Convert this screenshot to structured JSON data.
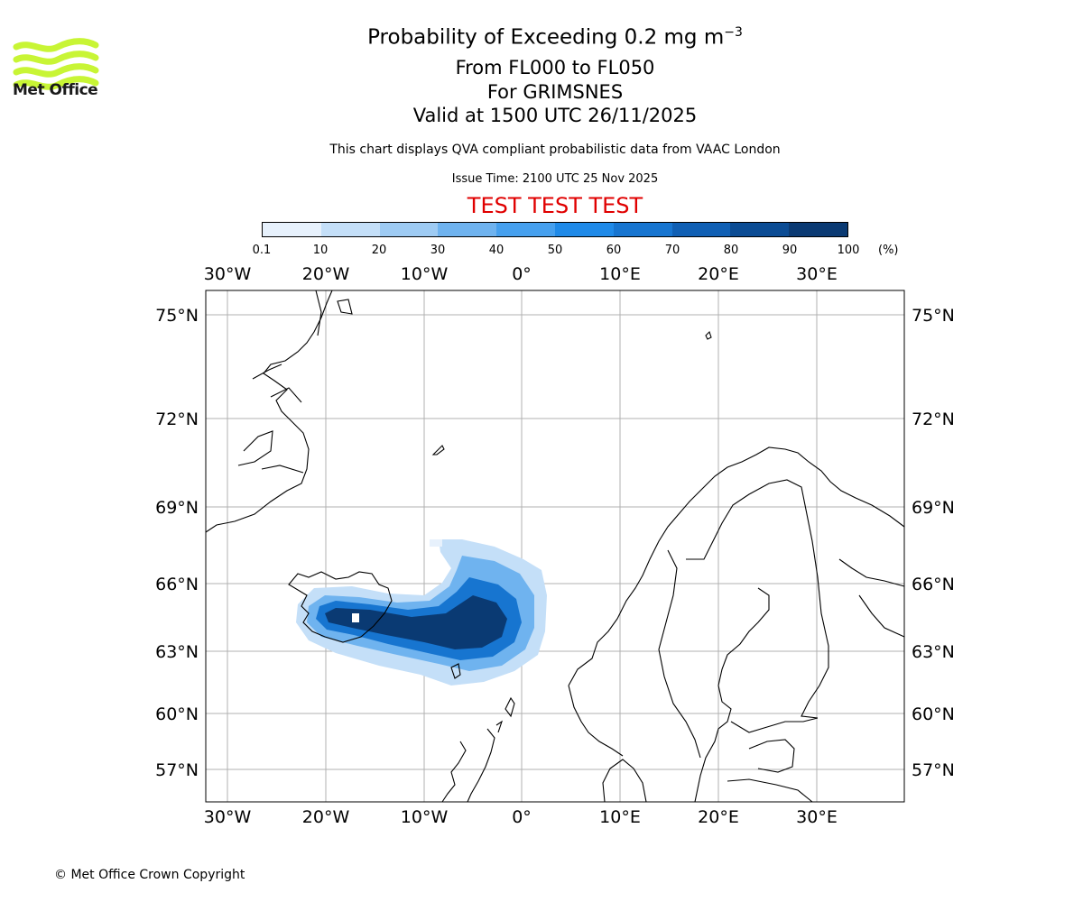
{
  "logo": {
    "text": "Met Office",
    "color": "#c8f535"
  },
  "header": {
    "title": "Probability of Exceeding 0.2 mg m",
    "title_superscript": "−3",
    "flight_levels": "From FL000 to FL050",
    "location": "For GRIMSNES",
    "valid": "Valid at 1500 UTC 26/11/2025",
    "note": "This chart displays QVA compliant probabilistic data from VAAC London",
    "issue_time": "Issue Time: 2100 UTC 25 Nov 2025",
    "test_banner": "TEST TEST TEST"
  },
  "colorbar": {
    "ticks": [
      "0.1",
      "10",
      "20",
      "30",
      "40",
      "50",
      "60",
      "70",
      "80",
      "90",
      "100"
    ],
    "unit": "(%)",
    "colors": [
      "#e7f1fc",
      "#c4dff8",
      "#9ecbf3",
      "#6fb3ef",
      "#46a0ee",
      "#1f8ae8",
      "#1775d0",
      "#0f5fb4",
      "#0b4c94",
      "#0a3a73",
      "#082a56"
    ]
  },
  "map": {
    "lon_labels": [
      "30°W",
      "20°W",
      "10°W",
      "0°",
      "10°E",
      "20°E",
      "30°E"
    ],
    "lat_labels": [
      "75°N",
      "72°N",
      "69°N",
      "66°N",
      "63°N",
      "60°N",
      "57°N"
    ],
    "plume_color_scale": "Blues"
  },
  "footer": {
    "copyright": "© Met Office Crown Copyright"
  }
}
